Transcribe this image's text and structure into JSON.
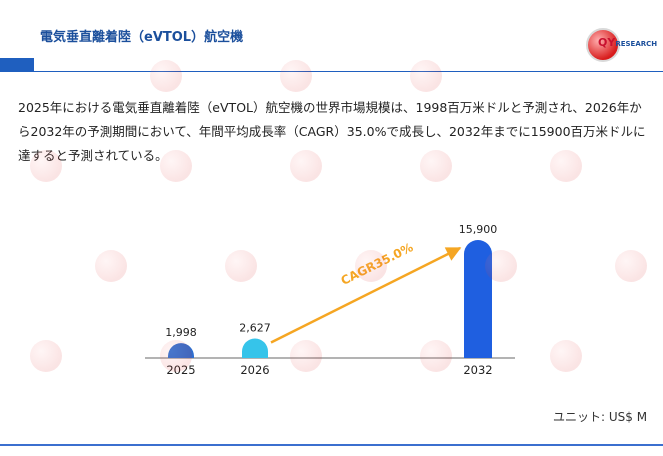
{
  "header": {
    "title": "電気垂直離着陸（eVTOL）航空機",
    "logo_text": "QY",
    "logo_sub": "RESEARCH"
  },
  "description": "2025年における電気垂直離着陸（eVTOL）航空機の世界市場規模は、1998百万米ドルと予測され、2026年から2032年の予測期間において、年間平均成長率（CAGR）35.0%で成長し、2032年までに15900百万米ドルに達すると予測されている。",
  "unit_label": "ユニット: US$ M",
  "colors": {
    "title": "#1b4f9c",
    "accent": "#1f5fbf",
    "bar_2025": "#2f6fd0",
    "bar_2026": "#36c4ea",
    "bar_2032": "#1f5fe0",
    "arrow": "#f5a623"
  },
  "chart_data": {
    "type": "bar",
    "categories": [
      "2025",
      "2026",
      "2032"
    ],
    "values": [
      1998,
      2627,
      15900
    ],
    "value_labels": [
      "1,998",
      "2,627",
      "15,900"
    ],
    "annotation": "CAGR35.0%",
    "ylim": [
      0,
      15900
    ],
    "grid": false
  }
}
